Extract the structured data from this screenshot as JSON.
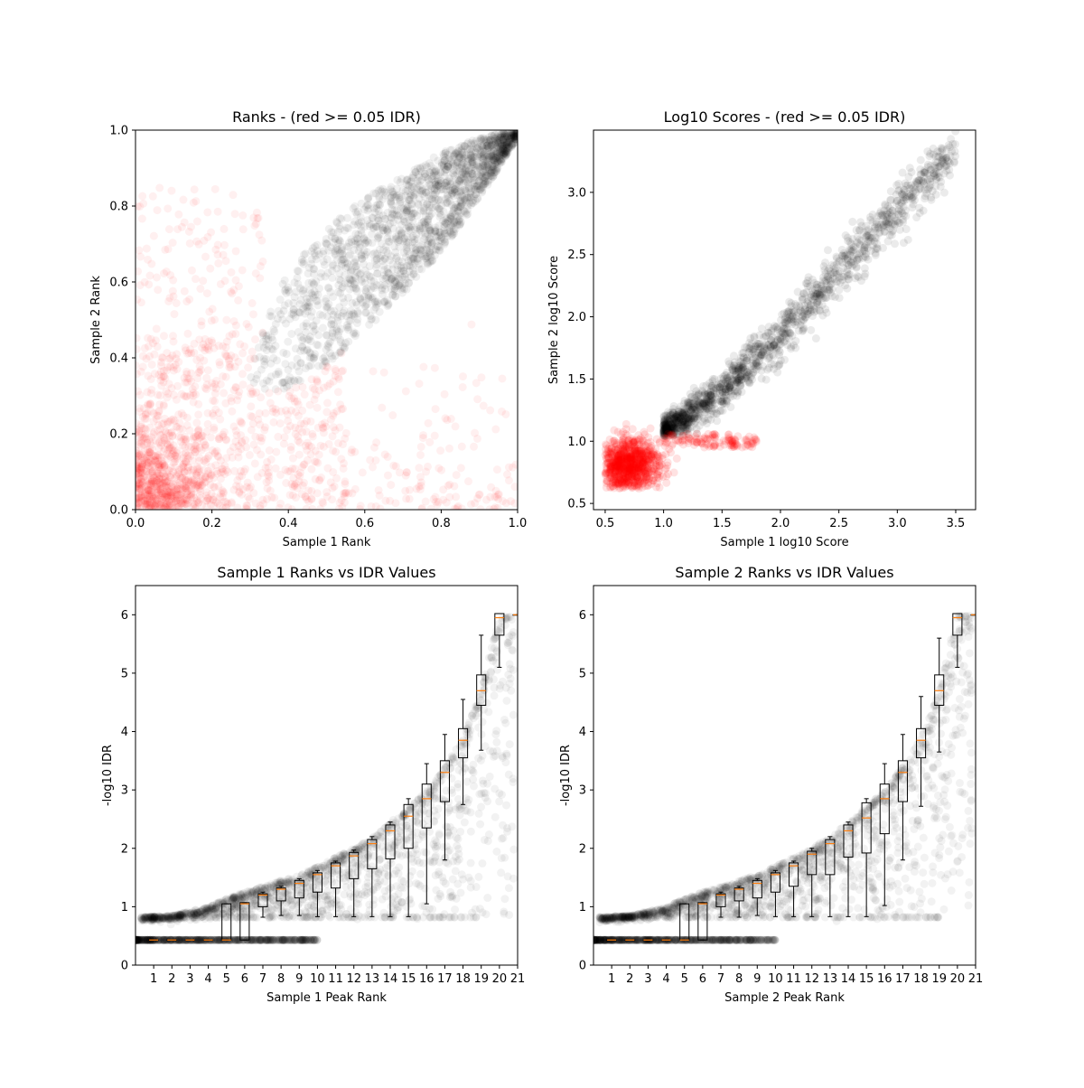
{
  "figure_background": "#ffffff",
  "colors": {
    "above_threshold": "#000000",
    "below_threshold": "#ff0000",
    "median_line": "#ff7f0e",
    "box_edge": "#000000"
  },
  "chart_data": [
    {
      "type": "scatter",
      "title": "Ranks - (red >= 0.05 IDR)",
      "xlabel": "Sample 1 Rank",
      "ylabel": "Sample 2 Rank",
      "xlim": [
        0,
        1
      ],
      "ylim": [
        0,
        1
      ],
      "xticks": [
        0,
        0.2,
        0.4,
        0.6,
        0.8,
        1.0
      ],
      "yticks": [
        0,
        0.2,
        0.4,
        0.6,
        0.8,
        1.0
      ],
      "tick_labels_x": [
        "0.0",
        "0.2",
        "0.4",
        "0.6",
        "0.8",
        "1.0"
      ],
      "tick_labels_y": [
        "0.0",
        "0.2",
        "0.4",
        "0.6",
        "0.8",
        "1.0"
      ],
      "grid": false,
      "point_alpha": 0.06,
      "series": [
        {
          "group": "idr_below_0.05",
          "color": "#000000",
          "shape": "wedge from (0.30, 0.35) widening to corner (1.0, 1.0)",
          "region": {
            "upper": [
              [
                0.3,
                0.36
              ],
              [
                0.35,
                0.52
              ],
              [
                0.4,
                0.63
              ],
              [
                0.5,
                0.74
              ],
              [
                0.6,
                0.82
              ],
              [
                0.7,
                0.88
              ],
              [
                0.8,
                0.94
              ],
              [
                0.9,
                0.98
              ],
              [
                1.0,
                1.0
              ]
            ],
            "lower": [
              [
                0.3,
                0.34
              ],
              [
                0.35,
                0.31
              ],
              [
                0.4,
                0.32
              ],
              [
                0.5,
                0.38
              ],
              [
                0.6,
                0.47
              ],
              [
                0.7,
                0.57
              ],
              [
                0.8,
                0.68
              ],
              [
                0.9,
                0.82
              ],
              [
                1.0,
                0.98
              ]
            ]
          }
        },
        {
          "group": "idr_at_least_0.05",
          "color": "#ff0000",
          "shape": "dense at origin, spread over lower-left and off-diagonal regions",
          "center": [
            0.0,
            0.0
          ]
        }
      ]
    },
    {
      "type": "scatter",
      "title": "Log10 Scores - (red >= 0.05 IDR)",
      "xlabel": "Sample 1 log10 Score",
      "ylabel": "Sample 2 log10 Score",
      "xlim": [
        0.4,
        3.67
      ],
      "ylim": [
        0.45,
        3.5
      ],
      "xticks": [
        0.5,
        1.0,
        1.5,
        2.0,
        2.5,
        3.0,
        3.5
      ],
      "yticks": [
        0.5,
        1.0,
        1.5,
        2.0,
        2.5,
        3.0
      ],
      "tick_labels_x": [
        "0.5",
        "1.0",
        "1.5",
        "2.0",
        "2.5",
        "3.0",
        "3.5"
      ],
      "tick_labels_y": [
        "0.5",
        "1.0",
        "1.5",
        "2.0",
        "2.5",
        "3.0"
      ],
      "grid": false,
      "point_alpha": 0.08,
      "series": [
        {
          "group": "idr_below_0.05",
          "color": "#000000",
          "shape": "diagonal band from (1.0, 1.05) to (3.5, 3.35)",
          "band_center": [
            [
              1.0,
              1.07
            ],
            [
              1.5,
              1.4
            ],
            [
              2.0,
              1.85
            ],
            [
              2.5,
              2.35
            ],
            [
              3.0,
              2.85
            ],
            [
              3.5,
              3.35
            ]
          ]
        },
        {
          "group": "idr_at_least_0.05",
          "color": "#ff0000",
          "shape": "dense cluster centered near (0.7, 0.8)",
          "center": [
            0.7,
            0.8
          ]
        }
      ]
    },
    {
      "type": "box",
      "title": "Sample 1 Ranks vs IDR Values",
      "xlabel": "Sample 1 Peak Rank",
      "ylabel": "-log10 IDR",
      "xlim": [
        0,
        21
      ],
      "ylim": [
        0,
        6.5
      ],
      "xticks": [
        1,
        2,
        3,
        4,
        5,
        6,
        7,
        8,
        9,
        10,
        11,
        12,
        13,
        14,
        15,
        16,
        17,
        18,
        19,
        20,
        21
      ],
      "yticks": [
        0,
        1,
        2,
        3,
        4,
        5,
        6
      ],
      "tick_labels_x": [
        "1",
        "2",
        "3",
        "4",
        "5",
        "6",
        "7",
        "8",
        "9",
        "10",
        "11",
        "12",
        "13",
        "14",
        "15",
        "16",
        "17",
        "18",
        "19",
        "20",
        "21"
      ],
      "tick_labels_y": [
        "0",
        "1",
        "2",
        "3",
        "4",
        "5",
        "6"
      ],
      "grid": false,
      "background_points": "black scatter along rank-vs-IDR curve with low-IDR band at 0.43",
      "curve": [
        [
          0.0,
          0.82
        ],
        [
          2,
          0.85
        ],
        [
          4,
          1.0
        ],
        [
          5,
          1.15
        ],
        [
          6,
          1.25
        ],
        [
          7,
          1.35
        ],
        [
          8,
          1.45
        ],
        [
          9,
          1.55
        ],
        [
          10,
          1.7
        ],
        [
          11,
          1.85
        ],
        [
          12,
          2.0
        ],
        [
          13,
          2.2
        ],
        [
          14,
          2.45
        ],
        [
          15,
          2.7
        ],
        [
          16,
          3.0
        ],
        [
          17,
          3.4
        ],
        [
          18,
          3.9
        ],
        [
          19,
          4.7
        ],
        [
          19.5,
          5.4
        ],
        [
          20,
          6.0
        ],
        [
          21,
          6.0
        ]
      ],
      "boxes": [
        {
          "pos": 1,
          "q1": 0.43,
          "median": 0.43,
          "q3": 0.43,
          "whislo": 0.43,
          "whishi": 0.43
        },
        {
          "pos": 2,
          "q1": 0.43,
          "median": 0.43,
          "q3": 0.43,
          "whislo": 0.43,
          "whishi": 0.43
        },
        {
          "pos": 3,
          "q1": 0.43,
          "median": 0.43,
          "q3": 0.43,
          "whislo": 0.43,
          "whishi": 0.43
        },
        {
          "pos": 4,
          "q1": 0.43,
          "median": 0.43,
          "q3": 0.43,
          "whislo": 0.43,
          "whishi": 0.43
        },
        {
          "pos": 5,
          "q1": 0.43,
          "median": 0.43,
          "q3": 1.05,
          "whislo": 0.43,
          "whishi": 1.05
        },
        {
          "pos": 6,
          "q1": 0.43,
          "median": 1.05,
          "q3": 1.07,
          "whislo": 0.43,
          "whishi": 1.07
        },
        {
          "pos": 7,
          "q1": 1.0,
          "median": 1.2,
          "q3": 1.22,
          "whislo": 0.82,
          "whishi": 1.25
        },
        {
          "pos": 8,
          "q1": 1.1,
          "median": 1.3,
          "q3": 1.32,
          "whislo": 0.85,
          "whishi": 1.35
        },
        {
          "pos": 9,
          "q1": 1.15,
          "median": 1.4,
          "q3": 1.45,
          "whislo": 0.85,
          "whishi": 1.48
        },
        {
          "pos": 10,
          "q1": 1.25,
          "median": 1.55,
          "q3": 1.58,
          "whislo": 0.83,
          "whishi": 1.62
        },
        {
          "pos": 11,
          "q1": 1.32,
          "median": 1.7,
          "q3": 1.75,
          "whislo": 0.83,
          "whishi": 1.78
        },
        {
          "pos": 12,
          "q1": 1.48,
          "median": 1.87,
          "q3": 1.93,
          "whislo": 0.83,
          "whishi": 1.97
        },
        {
          "pos": 13,
          "q1": 1.65,
          "median": 2.08,
          "q3": 2.15,
          "whislo": 0.83,
          "whishi": 2.2
        },
        {
          "pos": 14,
          "q1": 1.82,
          "median": 2.3,
          "q3": 2.4,
          "whislo": 0.83,
          "whishi": 2.45
        },
        {
          "pos": 15,
          "q1": 2.0,
          "median": 2.55,
          "q3": 2.75,
          "whislo": 0.83,
          "whishi": 2.85
        },
        {
          "pos": 16,
          "q1": 2.35,
          "median": 2.85,
          "q3": 3.1,
          "whislo": 1.05,
          "whishi": 3.45
        },
        {
          "pos": 17,
          "q1": 2.8,
          "median": 3.3,
          "q3": 3.5,
          "whislo": 1.8,
          "whishi": 3.95
        },
        {
          "pos": 18,
          "q1": 3.55,
          "median": 3.85,
          "q3": 4.05,
          "whislo": 2.75,
          "whishi": 4.55
        },
        {
          "pos": 19,
          "q1": 4.45,
          "median": 4.7,
          "q3": 4.97,
          "whislo": 3.68,
          "whishi": 5.65
        },
        {
          "pos": 20,
          "q1": 5.65,
          "median": 5.95,
          "q3": 6.02,
          "whislo": 5.1,
          "whishi": 6.02
        },
        {
          "pos": 21,
          "q1": 6.0,
          "median": 6.0,
          "q3": 6.0,
          "whislo": 6.0,
          "whishi": 6.0
        }
      ]
    },
    {
      "type": "box",
      "title": "Sample 2 Ranks vs IDR Values",
      "xlabel": "Sample 2 Peak Rank",
      "ylabel": "-log10 IDR",
      "xlim": [
        0,
        21
      ],
      "ylim": [
        0,
        6.5
      ],
      "xticks": [
        1,
        2,
        3,
        4,
        5,
        6,
        7,
        8,
        9,
        10,
        11,
        12,
        13,
        14,
        15,
        16,
        17,
        18,
        19,
        20,
        21
      ],
      "yticks": [
        0,
        1,
        2,
        3,
        4,
        5,
        6
      ],
      "tick_labels_x": [
        "1",
        "2",
        "3",
        "4",
        "5",
        "6",
        "7",
        "8",
        "9",
        "10",
        "11",
        "12",
        "13",
        "14",
        "15",
        "16",
        "17",
        "18",
        "19",
        "20",
        "21"
      ],
      "tick_labels_y": [
        "0",
        "1",
        "2",
        "3",
        "4",
        "5",
        "6"
      ],
      "grid": false,
      "background_points": "black scatter along rank-vs-IDR curve with low-IDR band at 0.43",
      "curve": [
        [
          0.0,
          0.82
        ],
        [
          2,
          0.85
        ],
        [
          4,
          1.0
        ],
        [
          5,
          1.15
        ],
        [
          6,
          1.25
        ],
        [
          7,
          1.35
        ],
        [
          8,
          1.45
        ],
        [
          9,
          1.55
        ],
        [
          10,
          1.7
        ],
        [
          11,
          1.85
        ],
        [
          12,
          2.0
        ],
        [
          13,
          2.2
        ],
        [
          14,
          2.45
        ],
        [
          15,
          2.7
        ],
        [
          16,
          3.0
        ],
        [
          17,
          3.4
        ],
        [
          18,
          3.9
        ],
        [
          19,
          4.7
        ],
        [
          19.5,
          5.4
        ],
        [
          20,
          6.0
        ],
        [
          21,
          6.0
        ]
      ],
      "boxes": [
        {
          "pos": 1,
          "q1": 0.43,
          "median": 0.43,
          "q3": 0.43,
          "whislo": 0.43,
          "whishi": 0.43
        },
        {
          "pos": 2,
          "q1": 0.43,
          "median": 0.43,
          "q3": 0.43,
          "whislo": 0.43,
          "whishi": 0.43
        },
        {
          "pos": 3,
          "q1": 0.43,
          "median": 0.43,
          "q3": 0.43,
          "whislo": 0.43,
          "whishi": 0.43
        },
        {
          "pos": 4,
          "q1": 0.43,
          "median": 0.43,
          "q3": 0.43,
          "whislo": 0.43,
          "whishi": 0.43
        },
        {
          "pos": 5,
          "q1": 0.43,
          "median": 0.43,
          "q3": 1.05,
          "whislo": 0.43,
          "whishi": 1.05
        },
        {
          "pos": 6,
          "q1": 0.43,
          "median": 1.05,
          "q3": 1.07,
          "whislo": 0.43,
          "whishi": 1.07
        },
        {
          "pos": 7,
          "q1": 1.0,
          "median": 1.2,
          "q3": 1.22,
          "whislo": 0.82,
          "whishi": 1.25
        },
        {
          "pos": 8,
          "q1": 1.1,
          "median": 1.3,
          "q3": 1.32,
          "whislo": 0.82,
          "whishi": 1.35
        },
        {
          "pos": 9,
          "q1": 1.15,
          "median": 1.4,
          "q3": 1.45,
          "whislo": 0.85,
          "whishi": 1.48
        },
        {
          "pos": 10,
          "q1": 1.25,
          "median": 1.55,
          "q3": 1.58,
          "whislo": 0.83,
          "whishi": 1.62
        },
        {
          "pos": 11,
          "q1": 1.35,
          "median": 1.7,
          "q3": 1.75,
          "whislo": 0.83,
          "whishi": 1.78
        },
        {
          "pos": 12,
          "q1": 1.55,
          "median": 1.9,
          "q3": 1.95,
          "whislo": 0.83,
          "whishi": 2.0
        },
        {
          "pos": 13,
          "q1": 1.55,
          "median": 2.08,
          "q3": 2.15,
          "whislo": 0.83,
          "whishi": 2.2
        },
        {
          "pos": 14,
          "q1": 1.85,
          "median": 2.3,
          "q3": 2.4,
          "whislo": 0.83,
          "whishi": 2.45
        },
        {
          "pos": 15,
          "q1": 1.92,
          "median": 2.52,
          "q3": 2.78,
          "whislo": 0.83,
          "whishi": 2.85
        },
        {
          "pos": 16,
          "q1": 2.25,
          "median": 2.85,
          "q3": 3.1,
          "whislo": 1.02,
          "whishi": 3.45
        },
        {
          "pos": 17,
          "q1": 2.8,
          "median": 3.3,
          "q3": 3.5,
          "whislo": 1.8,
          "whishi": 3.95
        },
        {
          "pos": 18,
          "q1": 3.55,
          "median": 3.85,
          "q3": 4.05,
          "whislo": 2.72,
          "whishi": 4.6
        },
        {
          "pos": 19,
          "q1": 4.45,
          "median": 4.7,
          "q3": 4.97,
          "whislo": 3.65,
          "whishi": 5.6
        },
        {
          "pos": 20,
          "q1": 5.65,
          "median": 5.95,
          "q3": 6.02,
          "whislo": 5.1,
          "whishi": 6.02
        },
        {
          "pos": 21,
          "q1": 6.0,
          "median": 6.0,
          "q3": 6.0,
          "whislo": 6.0,
          "whishi": 6.0
        }
      ]
    }
  ]
}
